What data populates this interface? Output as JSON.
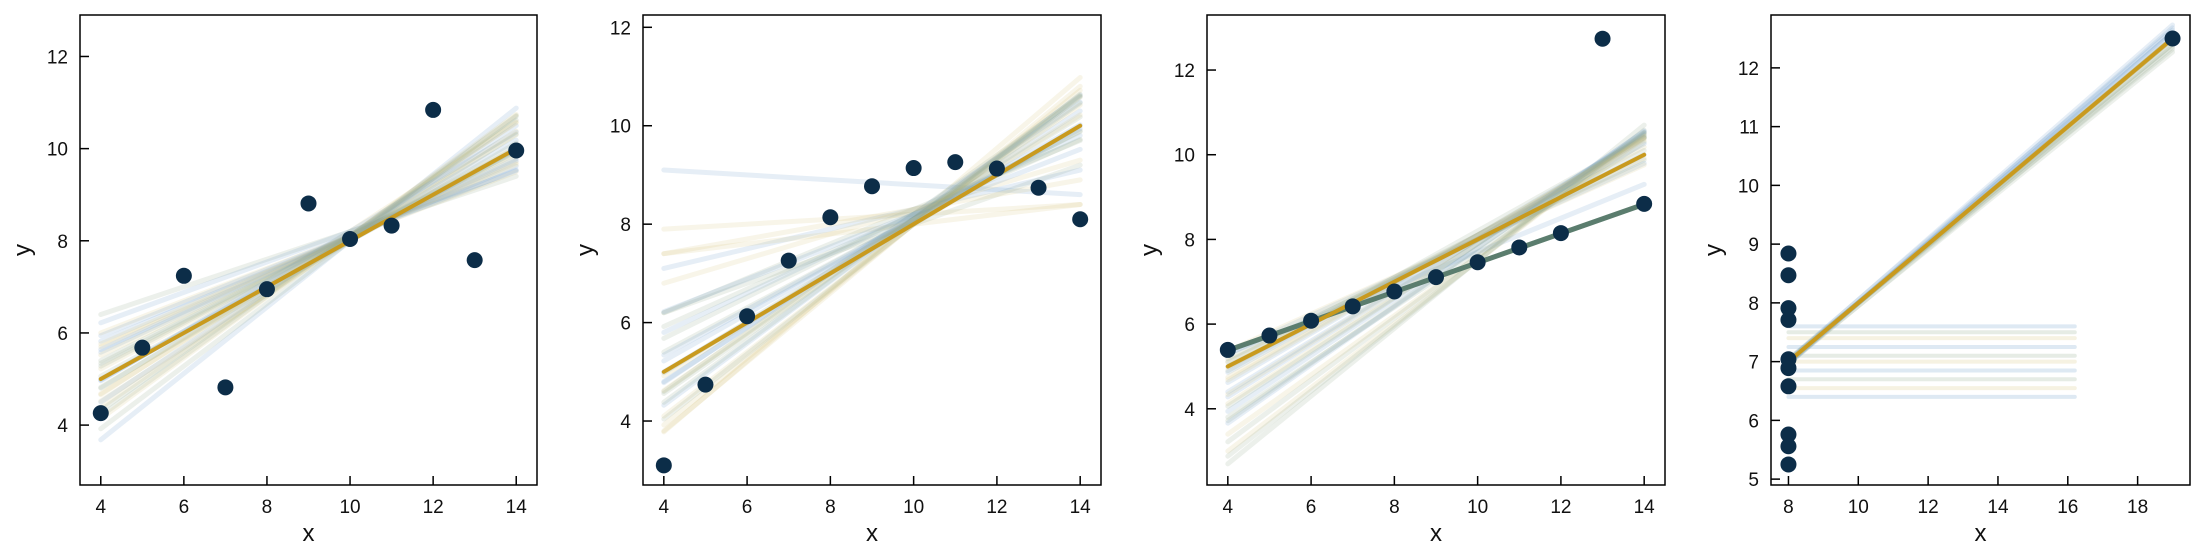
{
  "colors": {
    "points": "#0c2d48",
    "main_line": "#c99a1e",
    "bootstrap_blue": "#6b9bc9",
    "bootstrap_gold": "#d8c37a",
    "bootstrap_green": "#8fa88a",
    "fit_line_panel3": "#5b7d6e"
  },
  "chart_data": [
    {
      "type": "scatter",
      "xlabel": "x",
      "ylabel": "y",
      "xlim": [
        3.5,
        14.5
      ],
      "ylim": [
        2.7,
        12.9
      ],
      "xticks": [
        4,
        6,
        8,
        10,
        12,
        14
      ],
      "yticks": [
        4,
        6,
        8,
        10,
        12
      ],
      "points": [
        [
          4,
          4.26
        ],
        [
          5,
          5.68
        ],
        [
          6,
          7.24
        ],
        [
          7,
          4.82
        ],
        [
          8,
          6.95
        ],
        [
          9,
          8.81
        ],
        [
          10,
          8.04
        ],
        [
          11,
          8.33
        ],
        [
          12,
          10.84
        ],
        [
          13,
          7.58
        ],
        [
          14,
          9.96
        ]
      ],
      "fit": {
        "slope": 0.5,
        "intercept": 3.0,
        "x_range": [
          4,
          14
        ]
      },
      "bootstrap_lines": [
        [
          0.5,
          3.0
        ],
        [
          0.35,
          4.6
        ],
        [
          0.65,
          1.6
        ],
        [
          0.42,
          3.9
        ],
        [
          0.58,
          2.2
        ],
        [
          0.3,
          5.2
        ],
        [
          0.72,
          0.8
        ],
        [
          0.48,
          3.3
        ],
        [
          0.55,
          2.6
        ],
        [
          0.38,
          4.3
        ],
        [
          0.62,
          1.9
        ],
        [
          0.45,
          3.6
        ],
        [
          0.52,
          2.9
        ],
        [
          0.4,
          4.1
        ],
        [
          0.68,
          1.2
        ],
        [
          0.33,
          4.9
        ],
        [
          0.57,
          2.4
        ],
        [
          0.47,
          3.4
        ],
        [
          0.6,
          2.1
        ],
        [
          0.43,
          3.8
        ],
        [
          0.53,
          2.7
        ],
        [
          0.36,
          4.5
        ],
        [
          0.66,
          1.5
        ],
        [
          0.49,
          3.1
        ],
        [
          0.41,
          4.0
        ],
        [
          0.59,
          2.3
        ],
        [
          0.46,
          3.5
        ],
        [
          0.54,
          2.8
        ],
        [
          0.39,
          4.2
        ],
        [
          0.63,
          1.8
        ]
      ]
    },
    {
      "type": "scatter",
      "xlabel": "x",
      "ylabel": "y",
      "xlim": [
        3.5,
        14.5
      ],
      "ylim": [
        2.7,
        12.25
      ],
      "xticks": [
        4,
        6,
        8,
        10,
        12,
        14
      ],
      "yticks": [
        4,
        6,
        8,
        10,
        12
      ],
      "points": [
        [
          4,
          3.1
        ],
        [
          5,
          4.74
        ],
        [
          6,
          6.13
        ],
        [
          7,
          7.26
        ],
        [
          8,
          8.14
        ],
        [
          9,
          8.77
        ],
        [
          10,
          9.14
        ],
        [
          11,
          9.26
        ],
        [
          12,
          9.13
        ],
        [
          13,
          8.74
        ],
        [
          14,
          8.1
        ]
      ],
      "fit": {
        "slope": 0.5,
        "intercept": 3.0,
        "x_range": [
          4,
          14
        ]
      },
      "bootstrap_lines": [
        [
          0.5,
          3.0
        ],
        [
          0.72,
          0.9
        ],
        [
          0.3,
          5.0
        ],
        [
          -0.05,
          9.3
        ],
        [
          0.05,
          7.7
        ],
        [
          0.6,
          2.2
        ],
        [
          0.4,
          4.2
        ],
        [
          0.65,
          1.5
        ],
        [
          0.35,
          4.8
        ],
        [
          0.55,
          2.6
        ],
        [
          0.68,
          1.2
        ],
        [
          0.45,
          3.6
        ],
        [
          0.2,
          6.3
        ],
        [
          0.58,
          2.3
        ],
        [
          0.42,
          4.0
        ],
        [
          0.63,
          1.8
        ],
        [
          0.1,
          7.0
        ],
        [
          0.52,
          2.9
        ],
        [
          0.48,
          3.3
        ],
        [
          0.7,
          1.0
        ],
        [
          0.38,
          4.4
        ],
        [
          0.57,
          2.5
        ],
        [
          0.25,
          5.8
        ],
        [
          0.62,
          1.9
        ],
        [
          0.46,
          3.5
        ],
        [
          0.53,
          2.8
        ],
        [
          0.66,
          1.4
        ],
        [
          0.33,
          4.9
        ],
        [
          0.15,
          6.8
        ],
        [
          0.59,
          2.2
        ]
      ]
    },
    {
      "type": "scatter",
      "xlabel": "x",
      "ylabel": "y",
      "xlim": [
        3.5,
        14.5
      ],
      "ylim": [
        2.2,
        13.3
      ],
      "xticks": [
        4,
        6,
        8,
        10,
        12,
        14
      ],
      "yticks": [
        4,
        6,
        8,
        10,
        12
      ],
      "points": [
        [
          4,
          5.39
        ],
        [
          5,
          5.73
        ],
        [
          6,
          6.08
        ],
        [
          7,
          6.42
        ],
        [
          8,
          6.77
        ],
        [
          9,
          7.11
        ],
        [
          10,
          7.46
        ],
        [
          11,
          7.81
        ],
        [
          12,
          8.15
        ],
        [
          13,
          12.74
        ],
        [
          14,
          8.84
        ]
      ],
      "fit": {
        "slope": 0.5,
        "intercept": 3.0,
        "x_range": [
          4,
          14
        ]
      },
      "fit2": {
        "slope": 0.345,
        "intercept": 4.0,
        "x_range": [
          4,
          14
        ]
      },
      "bootstrap_lines": [
        [
          0.5,
          3.0
        ],
        [
          0.345,
          4.0
        ],
        [
          0.345,
          4.0
        ],
        [
          0.345,
          4.0
        ],
        [
          0.75,
          0.0
        ],
        [
          0.65,
          1.2
        ],
        [
          0.58,
          2.3
        ],
        [
          0.7,
          0.6
        ],
        [
          0.55,
          2.7
        ],
        [
          0.62,
          1.8
        ],
        [
          0.48,
          3.2
        ],
        [
          0.8,
          -0.5
        ],
        [
          0.6,
          2.0
        ],
        [
          0.52,
          2.9
        ],
        [
          0.68,
          1.0
        ],
        [
          0.45,
          3.5
        ],
        [
          0.57,
          2.4
        ],
        [
          0.73,
          0.3
        ],
        [
          0.4,
          3.7
        ],
        [
          0.63,
          1.6
        ],
        [
          0.5,
          3.1
        ],
        [
          0.66,
          1.3
        ],
        [
          0.44,
          3.6
        ],
        [
          0.77,
          -0.2
        ],
        [
          0.54,
          2.7
        ],
        [
          0.61,
          1.9
        ],
        [
          0.47,
          3.3
        ],
        [
          0.69,
          0.9
        ],
        [
          0.56,
          2.5
        ],
        [
          0.64,
          1.5
        ]
      ]
    },
    {
      "type": "scatter",
      "xlabel": "x",
      "ylabel": "y",
      "xlim": [
        7.5,
        19.5
      ],
      "ylim": [
        4.9,
        12.9
      ],
      "xticks": [
        8,
        10,
        12,
        14,
        16,
        18
      ],
      "yticks": [
        5,
        6,
        7,
        8,
        9,
        10,
        11,
        12
      ],
      "points": [
        [
          8,
          6.58
        ],
        [
          8,
          5.76
        ],
        [
          8,
          7.71
        ],
        [
          8,
          8.84
        ],
        [
          8,
          8.47
        ],
        [
          8,
          7.04
        ],
        [
          8,
          5.25
        ],
        [
          19,
          12.5
        ],
        [
          8,
          5.56
        ],
        [
          8,
          7.91
        ],
        [
          8,
          6.89
        ]
      ],
      "fit": {
        "slope": 0.5,
        "intercept": 3.0,
        "x_range": [
          8,
          19
        ]
      },
      "horizontal_lines": [
        6.4,
        6.55,
        6.7,
        6.85,
        7.0,
        7.1,
        7.25,
        7.4,
        7.5,
        7.6
      ],
      "bootstrap_lines": [
        [
          0.5,
          3.0
        ],
        [
          0.5,
          3.0
        ],
        [
          0.49,
          3.1
        ],
        [
          0.51,
          2.9
        ],
        [
          0.5,
          3.0
        ],
        [
          0.48,
          3.2
        ],
        [
          0.52,
          2.8
        ],
        [
          0.5,
          3.0
        ],
        [
          0.49,
          3.05
        ],
        [
          0.51,
          2.95
        ],
        [
          0.5,
          3.0
        ],
        [
          0.48,
          3.15
        ],
        [
          0.52,
          2.85
        ],
        [
          0.5,
          3.0
        ],
        [
          0.49,
          3.1
        ],
        [
          0.51,
          2.9
        ]
      ]
    }
  ]
}
